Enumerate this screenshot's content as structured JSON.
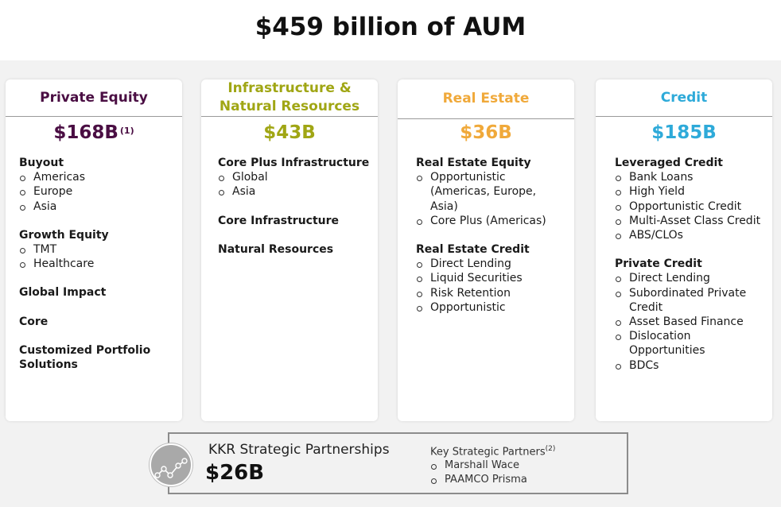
{
  "title": "$459 billion of AUM",
  "colors": {
    "private_equity": "#4a0e43",
    "infrastructure": "#a0a614",
    "real_estate": "#f0a93a",
    "credit": "#2eaad9"
  },
  "cards": [
    {
      "name": "Private Equity",
      "amount": "$168B",
      "footnote": "(1)",
      "groups": [
        {
          "title": "Buyout",
          "items": [
            "Americas",
            "Europe",
            "Asia"
          ]
        },
        {
          "title": "Growth Equity",
          "items": [
            "TMT",
            "Healthcare"
          ]
        },
        {
          "title": "Global Impact",
          "items": []
        },
        {
          "title": "Core",
          "items": []
        },
        {
          "title": "Customized Portfolio Solutions",
          "items": []
        }
      ]
    },
    {
      "name": "Infrastructure & Natural Resources",
      "amount": "$43B",
      "groups": [
        {
          "title": "Core Plus Infrastructure",
          "items": [
            "Global",
            "Asia"
          ]
        },
        {
          "title": "Core Infrastructure",
          "items": []
        },
        {
          "title": "Natural Resources",
          "items": []
        }
      ]
    },
    {
      "name": "Real Estate",
      "amount": "$36B",
      "groups": [
        {
          "title": "Real Estate Equity",
          "items": [
            "Opportunistic (Americas, Europe, Asia)",
            "Core Plus (Americas)"
          ]
        },
        {
          "title": "Real Estate Credit",
          "items": [
            "Direct Lending",
            "Liquid Securities",
            "Risk Retention",
            "Opportunistic"
          ]
        }
      ]
    },
    {
      "name": "Credit",
      "amount": "$185B",
      "groups": [
        {
          "title": "Leveraged Credit",
          "items": [
            "Bank Loans",
            "High Yield",
            "Opportunistic Credit",
            "Multi-Asset Class Credit",
            "ABS/CLOs"
          ]
        },
        {
          "title": "Private Credit",
          "items": [
            "Direct Lending",
            "Subordinated Private Credit",
            "Asset Based Finance",
            "Dislocation Opportunities",
            "BDCs"
          ]
        }
      ]
    }
  ],
  "strategic": {
    "title": "KKR Strategic Partnerships",
    "amount": "$26B",
    "icon": "network-icon",
    "partners_title": "Key Strategic Partners",
    "partners_footnote": "(2)",
    "partners": [
      "Marshall Wace",
      "PAAMCO Prisma"
    ]
  }
}
